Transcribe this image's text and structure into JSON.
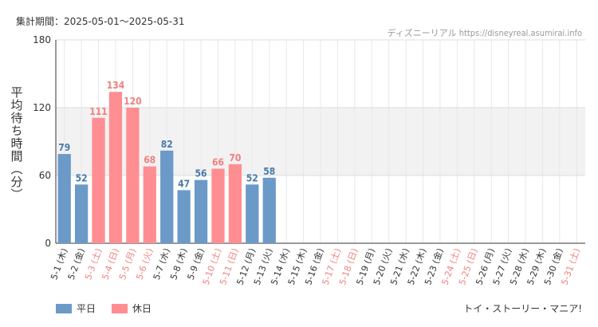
{
  "period_label": "集計期間：2025-05-01〜2025-05-31",
  "source_label": "ディズニーリアル https://disneyreal.asumirai.info",
  "attraction_name": "トイ・ストーリー・マニア!",
  "colors": {
    "weekday": "#6b9ac8",
    "holiday": "#ff8e92",
    "holiday_text": "#f08080",
    "weekday_text": "#4a7aa8",
    "band": "#f2f2f2"
  },
  "chart_data": {
    "type": "bar",
    "title": "",
    "xlabel": "",
    "ylabel": "平均待ち時間（分）",
    "ylim": [
      0,
      180
    ],
    "yticks": [
      0,
      60,
      120,
      180
    ],
    "grid": true,
    "legend_position": "bottom-left",
    "categories": [
      "5-1 (木)",
      "5-2 (金)",
      "5-3 (土)",
      "5-4 (日)",
      "5-5 (月)",
      "5-6 (火)",
      "5-7 (水)",
      "5-8 (木)",
      "5-9 (金)",
      "5-10 (土)",
      "5-11 (日)",
      "5-12 (月)",
      "5-13 (火)",
      "5-14 (水)",
      "5-15 (木)",
      "5-16 (金)",
      "5-17 (土)",
      "5-18 (日)",
      "5-19 (月)",
      "5-20 (火)",
      "5-21 (水)",
      "5-22 (木)",
      "5-23 (金)",
      "5-24 (土)",
      "5-25 (日)",
      "5-26 (月)",
      "5-27 (火)",
      "5-28 (水)",
      "5-29 (木)",
      "5-30 (金)",
      "5-31 (土)"
    ],
    "holiday_flags": [
      false,
      false,
      true,
      true,
      true,
      true,
      false,
      false,
      false,
      true,
      true,
      false,
      false,
      false,
      false,
      false,
      true,
      true,
      false,
      false,
      false,
      false,
      false,
      true,
      true,
      false,
      false,
      false,
      false,
      false,
      true
    ],
    "series": [
      {
        "name": "平日",
        "values": [
          79,
          52,
          null,
          null,
          null,
          null,
          82,
          47,
          56,
          null,
          null,
          52,
          58,
          null,
          null,
          null,
          null,
          null,
          null,
          null,
          null,
          null,
          null,
          null,
          null,
          null,
          null,
          null,
          null,
          null,
          null
        ]
      },
      {
        "name": "休日",
        "values": [
          null,
          null,
          111,
          134,
          120,
          68,
          null,
          null,
          null,
          66,
          70,
          null,
          null,
          null,
          null,
          null,
          null,
          null,
          null,
          null,
          null,
          null,
          null,
          null,
          null,
          null,
          null,
          null,
          null,
          null,
          null
        ]
      }
    ]
  }
}
